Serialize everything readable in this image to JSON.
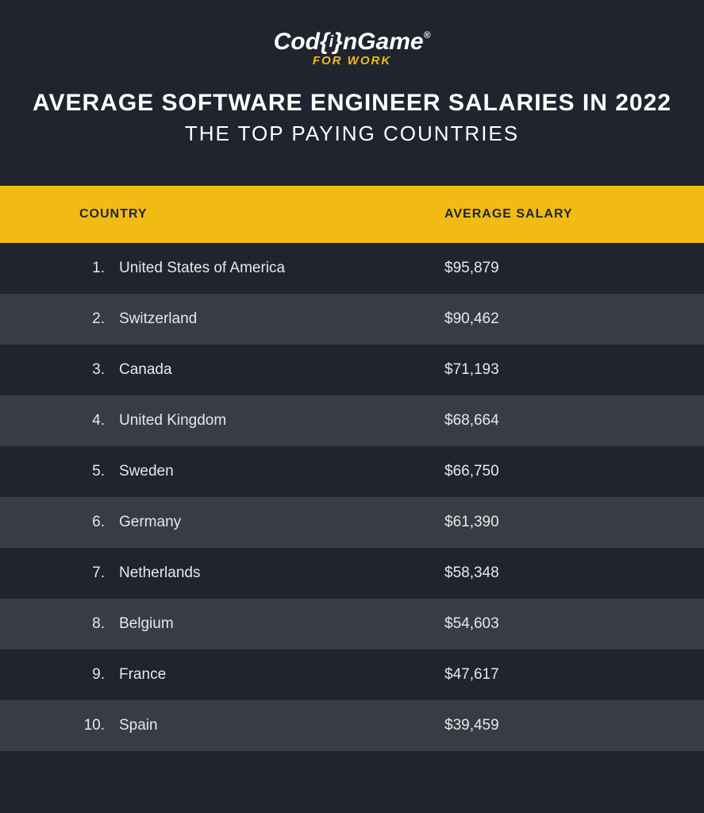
{
  "logo": {
    "main": "Cod( )nGame",
    "sub": "FOR WORK"
  },
  "title": {
    "main": "AVERAGE SOFTWARE ENGINEER SALARIES IN 2022",
    "sub": "THE TOP PAYING COUNTRIES"
  },
  "table": {
    "type": "table",
    "header_country": "COUNTRY",
    "header_salary": "AVERAGE SALARY",
    "header_bg": "#f2bb13",
    "header_text_color": "#1f242e",
    "row_bg_odd": "#1f242e",
    "row_bg_even": "#373c45",
    "text_color": "#e8e8e8",
    "font_size_header": 16,
    "font_size_row": 19,
    "rows": [
      {
        "rank": "1.",
        "country": "United States of America",
        "salary": "$95,879"
      },
      {
        "rank": "2.",
        "country": "Switzerland",
        "salary": "$90,462"
      },
      {
        "rank": "3.",
        "country": "Canada",
        "salary": "$71,193"
      },
      {
        "rank": "4.",
        "country": "United Kingdom",
        "salary": "$68,664"
      },
      {
        "rank": "5.",
        "country": "Sweden",
        "salary": "$66,750"
      },
      {
        "rank": "6.",
        "country": "Germany",
        "salary": "$61,390"
      },
      {
        "rank": "7.",
        "country": "Netherlands",
        "salary": "$58,348"
      },
      {
        "rank": "8.",
        "country": "Belgium",
        "salary": "$54,603"
      },
      {
        "rank": "9.",
        "country": "France",
        "salary": "$47,617"
      },
      {
        "rank": "10.",
        "country": "Spain",
        "salary": "$39,459"
      }
    ]
  },
  "colors": {
    "background": "#1f242e",
    "accent": "#f2bb13",
    "text": "#ffffff"
  }
}
